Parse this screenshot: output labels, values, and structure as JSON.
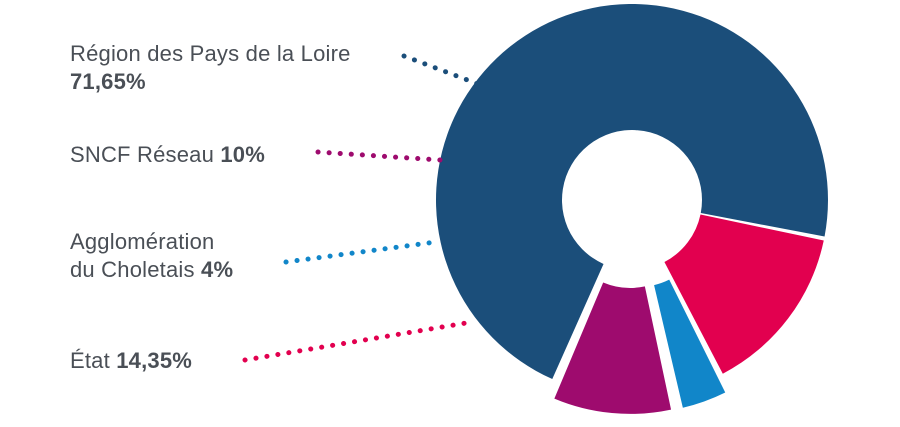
{
  "chart_data": {
    "type": "pie",
    "variant": "donut",
    "start_angle_deg": 113.4,
    "series": [
      {
        "values": [
          71.65,
          14.35,
          4,
          10
        ],
        "categories": [
          "Région des Pays de la Loire",
          "État",
          "Agglomération du Choletais",
          "SNCF Réseau"
        ],
        "colors": [
          "#1b4e7a",
          "#e2004f",
          "#1186c9",
          "#9e0b6e"
        ]
      }
    ],
    "slice_explode": [
      0,
      0,
      1,
      1
    ],
    "labels": [
      {
        "line1": "Région des Pays de la Loire",
        "line2": "",
        "value": "71,65%",
        "value_on_new_line": true,
        "dot_color": "#1b4e7a"
      },
      {
        "line1": "SNCF Réseau",
        "line2": "",
        "value": "10%",
        "value_on_new_line": false,
        "dot_color": "#9e0b6e"
      },
      {
        "line1": "Agglomération",
        "line2": "du Choletais",
        "value": "4%",
        "value_on_new_line": false,
        "dot_color": "#1186c9"
      },
      {
        "line1": "État",
        "line2": "",
        "value": "14,35%",
        "value_on_new_line": false,
        "dot_color": "#e2004f"
      }
    ]
  }
}
